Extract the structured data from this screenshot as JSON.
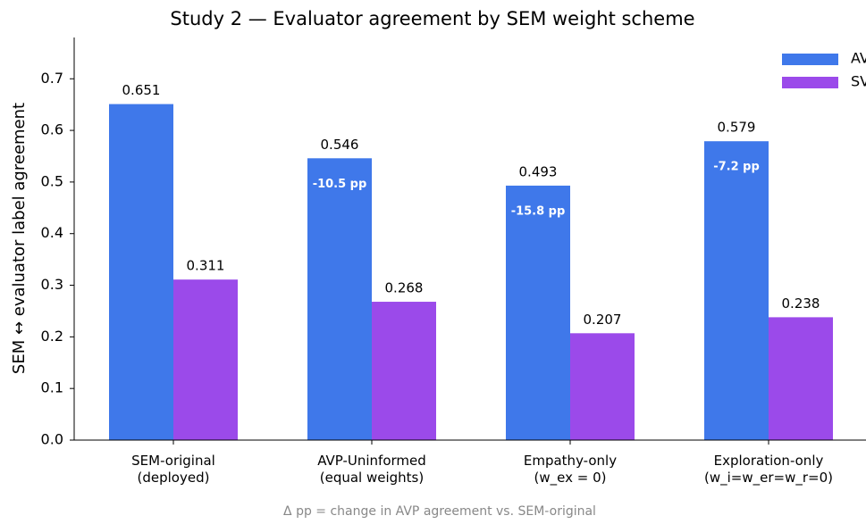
{
  "chart_data": {
    "type": "bar",
    "title": "Study 2 — Evaluator agreement by SEM weight scheme",
    "y_label": "SEM ↔ evaluator label agreement",
    "footnote": "Δ pp = change in AVP agreement vs. SEM-original",
    "categories": [
      "SEM-original\n(deployed)",
      "AVP-Uninformed\n(equal weights)",
      "Empathy-only\n(w_ex = 0)",
      "Exploration-only\n(w_i=w_er=w_r=0)"
    ],
    "series": [
      {
        "name": "AVP",
        "color": "#3f78ea",
        "values": [
          0.651,
          0.546,
          0.493,
          0.579
        ],
        "annotations": [
          null,
          "-10.5 pp",
          "-15.8 pp",
          "-7.2 pp"
        ]
      },
      {
        "name": "SVP",
        "color": "#9b4aea",
        "values": [
          0.311,
          0.268,
          0.207,
          0.238
        ]
      }
    ],
    "ylim": [
      0,
      0.78
    ],
    "yticks": [
      {
        "value": 0,
        "label": "0.0"
      },
      0.1,
      0.2,
      0.3,
      0.4,
      0.5,
      0.6,
      0.7
    ],
    "legend": "upper right",
    "grid": false
  }
}
